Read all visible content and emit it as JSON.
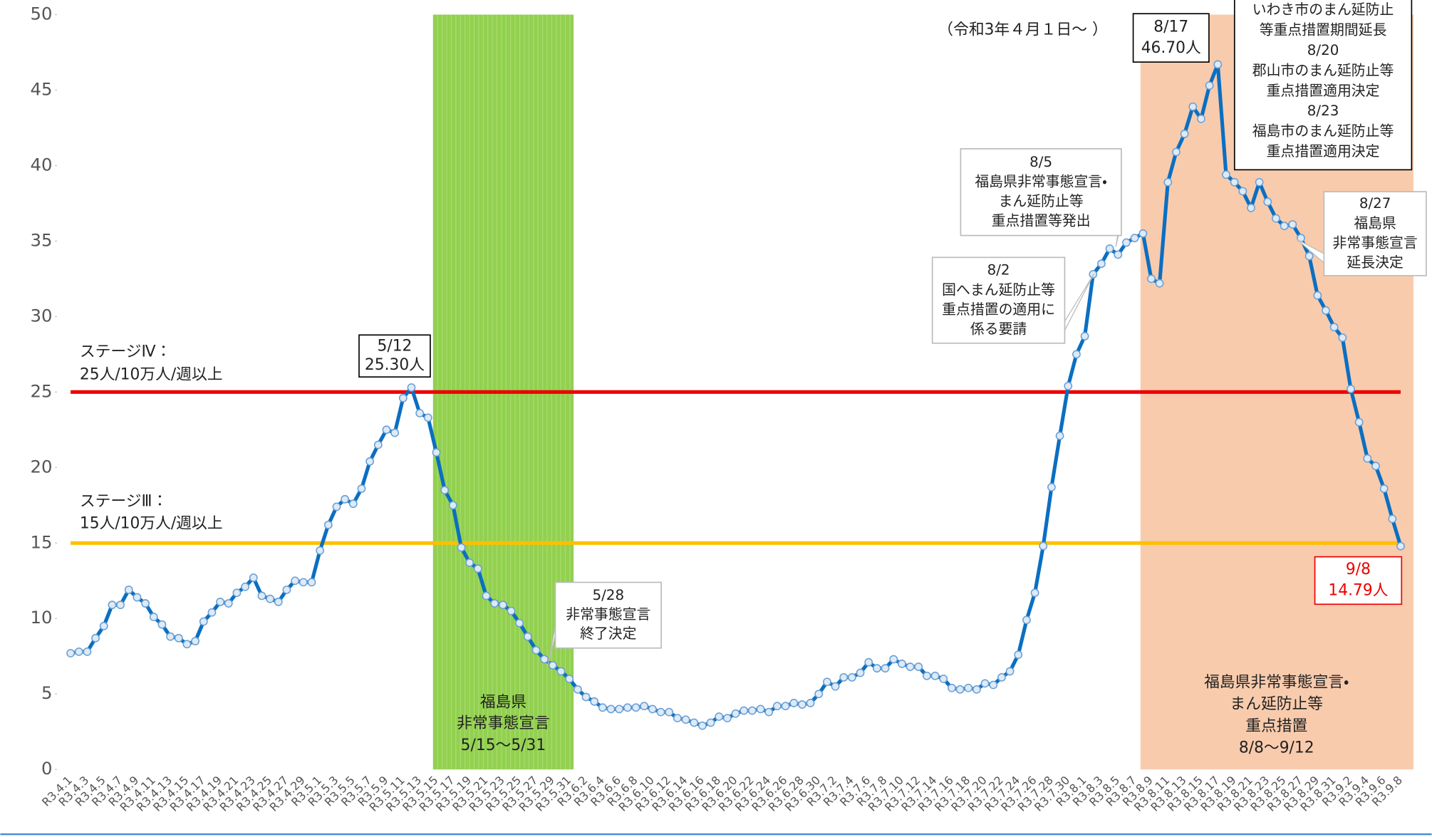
{
  "chart_data": {
    "type": "line",
    "categories": [
      "R3.4.1",
      null,
      "R3.4.3",
      null,
      "R3.4.5",
      null,
      "R3.4.7",
      null,
      "R3.4.9",
      null,
      "R3.4.11",
      null,
      "R3.4.13",
      null,
      "R3.4.15",
      null,
      "R3.4.17",
      null,
      "R3.4.19",
      null,
      "R3.4.21",
      null,
      "R3.4.23",
      null,
      "R3.4.25",
      null,
      "R3.4.27",
      null,
      "R3.4.29",
      null,
      "R3.5.1",
      null,
      "R3.5.3",
      null,
      "R3.5.5",
      null,
      "R3.5.7",
      null,
      "R3.5.9",
      null,
      "R3.5.11",
      null,
      "R3.5.13",
      null,
      "R3.5.15",
      null,
      "R3.5.17",
      null,
      "R3.5.19",
      null,
      "R3.5.21",
      null,
      "R3.5.23",
      null,
      "R3.5.25",
      null,
      "R3.5.27",
      null,
      "R3.5.29",
      null,
      "R3.5.31",
      null,
      "R3.6.2",
      null,
      "R3.6.4",
      null,
      "R3.6.6",
      null,
      "R3.6.8",
      null,
      "R3.6.10",
      null,
      "R3.6.12",
      null,
      "R3.6.14",
      null,
      "R3.6.16",
      null,
      "R3.6.18",
      null,
      "R3.6.20",
      null,
      "R3.6.22",
      null,
      "R3.6.24",
      null,
      "R3.6.26",
      null,
      "R3.6.28",
      null,
      "R3.6.30",
      null,
      "R3.7.2",
      null,
      "R3.7.4",
      null,
      "R3.7.6",
      null,
      "R3.7.8",
      null,
      "R3.7.10",
      null,
      "R3.7.12",
      null,
      "R3.7.14",
      null,
      "R3.7.16",
      null,
      "R3.7.18",
      null,
      "R3.7.20",
      null,
      "R3.7.22",
      null,
      "R3.7.24",
      null,
      "R3.7.26",
      null,
      "R3.7.28",
      null,
      "R3.7.30",
      null,
      "R3.8.1",
      null,
      "R3.8.3",
      null,
      "R3.8.5",
      null,
      "R3.8.7",
      null,
      "R3.8.9",
      null,
      "R3.8.11",
      null,
      "R3.8.13",
      null,
      "R3.8.15",
      null,
      "R3.8.17",
      null,
      "R3.8.19",
      null,
      "R3.8.21",
      null,
      "R3.8.23",
      null,
      "R3.8.25",
      null,
      "R3.8.27",
      null,
      "R3.8.29",
      null,
      "R3.8.31",
      null,
      "R3.9.2",
      null,
      "R3.9.4",
      null,
      "R3.9.6",
      null,
      "R3.9.8"
    ],
    "values": [
      7.7,
      7.8,
      7.8,
      8.7,
      9.5,
      10.9,
      10.9,
      11.9,
      11.4,
      11.0,
      10.1,
      9.6,
      8.8,
      8.7,
      8.3,
      8.5,
      9.8,
      10.4,
      11.1,
      11.0,
      11.7,
      12.1,
      12.7,
      11.5,
      11.3,
      11.1,
      11.9,
      12.5,
      12.4,
      12.4,
      14.5,
      16.2,
      17.4,
      17.9,
      17.6,
      18.6,
      20.4,
      21.5,
      22.5,
      22.3,
      24.6,
      25.3,
      23.6,
      23.3,
      21.0,
      18.5,
      17.5,
      14.7,
      13.7,
      13.3,
      11.5,
      11.0,
      10.9,
      10.5,
      9.7,
      8.8,
      7.9,
      7.3,
      6.9,
      6.5,
      6.0,
      5.3,
      4.8,
      4.5,
      4.1,
      4.0,
      4.0,
      4.1,
      4.1,
      4.2,
      4.0,
      3.8,
      3.8,
      3.4,
      3.3,
      3.1,
      2.9,
      3.1,
      3.5,
      3.4,
      3.7,
      3.9,
      3.9,
      4.0,
      3.8,
      4.2,
      4.2,
      4.4,
      4.3,
      4.4,
      5.0,
      5.8,
      5.5,
      6.1,
      6.1,
      6.4,
      7.1,
      6.7,
      6.7,
      7.3,
      7.0,
      6.8,
      6.8,
      6.2,
      6.2,
      6.0,
      5.4,
      5.3,
      5.4,
      5.3,
      5.7,
      5.6,
      6.1,
      6.5,
      7.6,
      9.9,
      11.7,
      14.8,
      18.7,
      22.1,
      25.4,
      27.5,
      28.7,
      32.8,
      33.5,
      34.5,
      34.1,
      34.9,
      35.2,
      35.5,
      32.5,
      32.2,
      38.9,
      40.9,
      42.1,
      43.9,
      43.1,
      45.3,
      46.7,
      39.4,
      38.9,
      38.3,
      37.2,
      38.9,
      37.6,
      36.5,
      36.0,
      36.1,
      35.2,
      34.0,
      31.4,
      30.4,
      29.3,
      28.6,
      25.2,
      23.0,
      20.6,
      20.1,
      18.6,
      16.6,
      14.79
    ],
    "color": "#0a6fc2",
    "ylim": [
      0,
      50
    ],
    "yticks": [
      0,
      5,
      10,
      15,
      20,
      25,
      30,
      35,
      40,
      45,
      50
    ],
    "thresholds": [
      {
        "value": 25,
        "label": "ステージⅣ：",
        "sublabel": "25人/10万人/週以上",
        "color": "#ee0000"
      },
      {
        "value": 15,
        "label": "ステージⅢ：",
        "sublabel": "15人/10万人/週以上",
        "color": "#ffc000"
      }
    ],
    "subtitle": "（令和3年４月１日～ ）",
    "annotations": [
      {
        "lines": [
          "5/12",
          "25.30人"
        ]
      },
      {
        "lines": [
          "5/28",
          "非常事態宣言",
          "終了決定"
        ]
      },
      {
        "lines": [
          "8/2",
          "国へまん延防止等",
          "重点措置の適用に",
          "係る要請"
        ]
      },
      {
        "lines": [
          "8/5",
          "福島県非常事態宣言・",
          "まん延防止等",
          "重点措置等発出"
        ]
      },
      {
        "lines": [
          "8/17",
          "46.70人"
        ]
      },
      {
        "lines": [
          "いわき市のまん延防止",
          "等重点措置期間延長",
          "8/20",
          "郡山市のまん延防止等",
          "重点措置適用決定",
          "8/23",
          "福島市のまん延防止等",
          "重点措置適用決定"
        ]
      },
      {
        "lines": [
          "8/27",
          "福島県",
          "非常事態宣言",
          "延長決定"
        ]
      },
      {
        "lines": [
          "9/8",
          "14.79人"
        ]
      }
    ],
    "periods": [
      {
        "lines": [
          "福島県",
          "非常事態宣言",
          "5/15～5/31"
        ],
        "color": "#92d050"
      },
      {
        "lines": [
          "福島県非常事態宣言・",
          "まん延防止等",
          "重点措置",
          "8/8～9/12"
        ],
        "color": "#f8cbad"
      }
    ]
  }
}
